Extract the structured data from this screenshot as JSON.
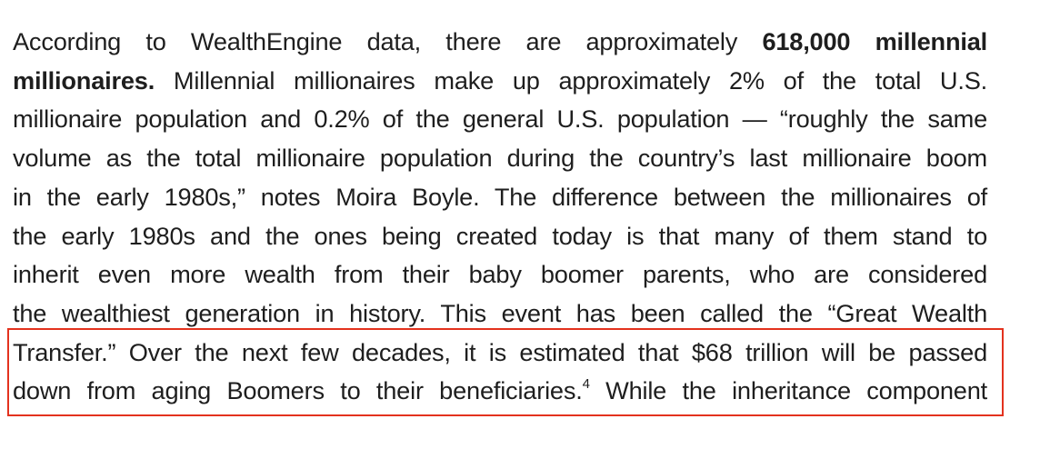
{
  "document": {
    "lines": [
      {
        "pre": "According to WealthEngine data, there are approximately ",
        "bold": "618,000 millennial"
      },
      {
        "bold": "millionaires.",
        "post": " Millennial millionaires make up approximately 2% of the total U.S."
      },
      {
        "text": "millionaire population and 0.2% of the general U.S. population — “roughly the same"
      },
      {
        "text": "volume as the total millionaire population during the country’s last millionaire boom"
      },
      {
        "text": "in the early 1980s,” notes Moira Boyle. The difference between the millionaires of"
      },
      {
        "text": "the early 1980s and the ones being created today is that many of them stand to"
      },
      {
        "text": "inherit even more wealth from their baby boomer parents, who are considered"
      },
      {
        "text": "the wealthiest generation in history. This event has been called the “Great Wealth"
      },
      {
        "text": "Transfer.” Over the next few decades, it is estimated that $68 trillion will be passed"
      },
      {
        "pre": "down from aging Boomers to their beneficiaries.",
        "sup": "4",
        "post": " While the inheritance component"
      }
    ]
  },
  "colors": {
    "text": "#1e1e1e",
    "highlight_border": "#e3321e",
    "background": "#ffffff"
  }
}
